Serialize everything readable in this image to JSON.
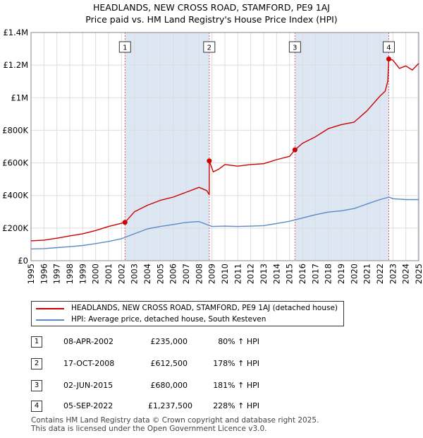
{
  "title_line1": "HEADLANDS, NEW CROSS ROAD, STAMFORD, PE9 1AJ",
  "title_line2": "Price paid vs. HM Land Registry's House Price Index (HPI)",
  "chart_data": {
    "type": "line",
    "xlim": [
      1995,
      2025
    ],
    "ylim": [
      0,
      1400000
    ],
    "y_ticks": [
      {
        "value": 0,
        "label": "£0"
      },
      {
        "value": 200000,
        "label": "£200K"
      },
      {
        "value": 400000,
        "label": "£400K"
      },
      {
        "value": 600000,
        "label": "£600K"
      },
      {
        "value": 800000,
        "label": "£800K"
      },
      {
        "value": 1000000,
        "label": "£1M"
      },
      {
        "value": 1200000,
        "label": "£1.2M"
      },
      {
        "value": 1400000,
        "label": "£1.4M"
      }
    ],
    "x_ticks": [
      "1995",
      "1996",
      "1997",
      "1998",
      "1999",
      "2000",
      "2001",
      "2002",
      "2003",
      "2004",
      "2005",
      "2006",
      "2007",
      "2008",
      "2009",
      "2010",
      "2011",
      "2012",
      "2013",
      "2014",
      "2015",
      "2016",
      "2017",
      "2018",
      "2019",
      "2020",
      "2021",
      "2022",
      "2023",
      "2024",
      "2025"
    ],
    "colors": {
      "property": "#cc0000",
      "hpi": "#5b8ac4",
      "shade": "#dde6f3",
      "vline": "#e06060",
      "grid": "#dddddd"
    },
    "series": [
      {
        "name": "HEADLANDS, NEW CROSS ROAD, STAMFORD, PE9 1AJ (detached house)",
        "color": "#cc0000",
        "points": [
          [
            1995.0,
            122000
          ],
          [
            1996.0,
            126000
          ],
          [
            1997.0,
            138000
          ],
          [
            1998.0,
            152000
          ],
          [
            1999.0,
            165000
          ],
          [
            2000.0,
            185000
          ],
          [
            2001.0,
            210000
          ],
          [
            2002.27,
            235000
          ],
          [
            2003.0,
            300000
          ],
          [
            2004.0,
            340000
          ],
          [
            2005.0,
            370000
          ],
          [
            2006.0,
            390000
          ],
          [
            2007.0,
            420000
          ],
          [
            2008.0,
            450000
          ],
          [
            2008.6,
            430000
          ],
          [
            2008.79,
            405000
          ],
          [
            2008.79,
            612500
          ],
          [
            2009.1,
            545000
          ],
          [
            2009.5,
            560000
          ],
          [
            2010.0,
            590000
          ],
          [
            2011.0,
            580000
          ],
          [
            2012.0,
            590000
          ],
          [
            2013.0,
            595000
          ],
          [
            2014.0,
            620000
          ],
          [
            2015.0,
            640000
          ],
          [
            2015.42,
            680000
          ],
          [
            2016.0,
            720000
          ],
          [
            2017.0,
            760000
          ],
          [
            2018.0,
            810000
          ],
          [
            2019.0,
            835000
          ],
          [
            2020.0,
            850000
          ],
          [
            2021.0,
            920000
          ],
          [
            2022.0,
            1010000
          ],
          [
            2022.4,
            1040000
          ],
          [
            2022.6,
            1100000
          ],
          [
            2022.68,
            1237500
          ],
          [
            2023.0,
            1230000
          ],
          [
            2023.5,
            1180000
          ],
          [
            2024.0,
            1195000
          ],
          [
            2024.5,
            1170000
          ],
          [
            2025.0,
            1210000
          ]
        ]
      },
      {
        "name": "HPI: Average price, detached house, South Kesteven",
        "color": "#5b8ac4",
        "points": [
          [
            1995.0,
            72000
          ],
          [
            1996.0,
            74000
          ],
          [
            1997.0,
            80000
          ],
          [
            1998.0,
            86000
          ],
          [
            1999.0,
            93000
          ],
          [
            2000.0,
            105000
          ],
          [
            2001.0,
            118000
          ],
          [
            2002.0,
            135000
          ],
          [
            2003.0,
            165000
          ],
          [
            2004.0,
            195000
          ],
          [
            2005.0,
            210000
          ],
          [
            2006.0,
            222000
          ],
          [
            2007.0,
            235000
          ],
          [
            2008.0,
            240000
          ],
          [
            2009.0,
            210000
          ],
          [
            2010.0,
            212000
          ],
          [
            2011.0,
            210000
          ],
          [
            2012.0,
            212000
          ],
          [
            2013.0,
            215000
          ],
          [
            2014.0,
            228000
          ],
          [
            2015.0,
            242000
          ],
          [
            2016.0,
            262000
          ],
          [
            2017.0,
            282000
          ],
          [
            2018.0,
            298000
          ],
          [
            2019.0,
            306000
          ],
          [
            2020.0,
            320000
          ],
          [
            2021.0,
            348000
          ],
          [
            2022.0,
            375000
          ],
          [
            2022.7,
            390000
          ],
          [
            2023.0,
            380000
          ],
          [
            2024.0,
            375000
          ],
          [
            2025.0,
            375000
          ]
        ]
      }
    ],
    "transactions": [
      {
        "num": "1",
        "x": 2002.27,
        "price": 235000,
        "date": "08-APR-2002",
        "price_label": "£235,000",
        "hpi_label": "80% ↑ HPI"
      },
      {
        "num": "2",
        "x": 2008.79,
        "price": 612500,
        "date": "17-OCT-2008",
        "price_label": "£612,500",
        "hpi_label": "178% ↑ HPI"
      },
      {
        "num": "3",
        "x": 2015.42,
        "price": 680000,
        "date": "02-JUN-2015",
        "price_label": "£680,000",
        "hpi_label": "181% ↑ HPI"
      },
      {
        "num": "4",
        "x": 2022.68,
        "price": 1237500,
        "date": "05-SEP-2022",
        "price_label": "£1,237,500",
        "hpi_label": "228% ↑ HPI"
      }
    ],
    "shaded_regions": [
      [
        2002.27,
        2008.79
      ],
      [
        2015.42,
        2022.68
      ],
      [
        2024.9,
        2025.0
      ]
    ]
  },
  "legend": {
    "property": "HEADLANDS, NEW CROSS ROAD, STAMFORD, PE9 1AJ (detached house)",
    "hpi": "HPI: Average price, detached house, South Kesteven"
  },
  "footer": {
    "line1": "Contains HM Land Registry data © Crown copyright and database right 2025.",
    "line2": "This data is licensed under the Open Government Licence v3.0."
  }
}
